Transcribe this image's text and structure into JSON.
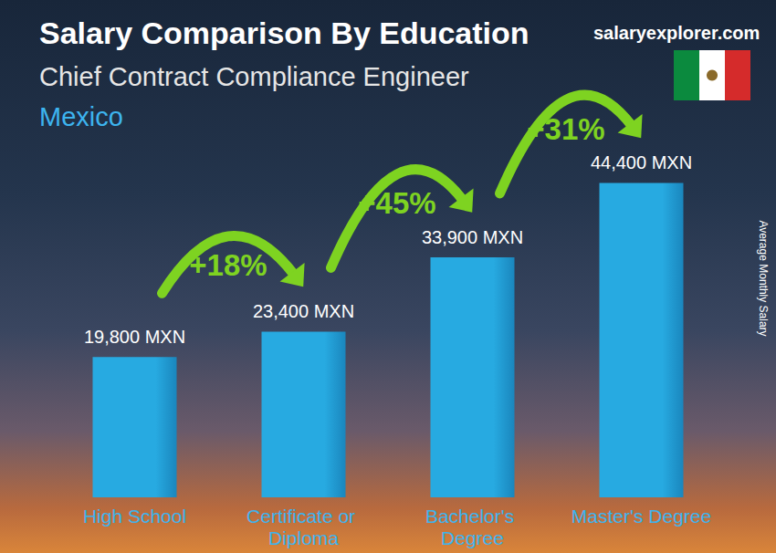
{
  "chart_data": {
    "type": "bar",
    "title": "Salary Comparison By Education",
    "subtitle": "Chief Contract Compliance Engineer",
    "region": "Mexico",
    "source": "salaryexplorer.com",
    "y_label": "Average Monthly Salary",
    "categories": [
      "High School",
      "Certificate or Diploma",
      "Bachelor's Degree",
      "Master's Degree"
    ],
    "values": [
      19800,
      23400,
      33900,
      44400
    ],
    "value_labels": [
      "19,800 MXN",
      "23,400 MXN",
      "33,900 MXN",
      "44,400 MXN"
    ],
    "annotations": [
      "+18%",
      "+45%",
      "+31%"
    ],
    "color": "#27aae1",
    "ylim": [
      0,
      50000
    ],
    "grid": false,
    "data_labels": true,
    "tick_labels": "x"
  }
}
